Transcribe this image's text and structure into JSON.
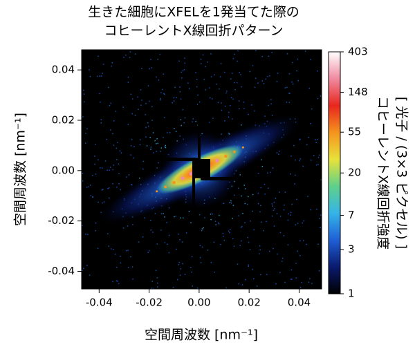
{
  "chart_data": {
    "type": "heatmap",
    "title": [
      "生きた細胞にXFELを1発当てた際の",
      "コヒーレントX線回折パターン"
    ],
    "x_label": "空間周波数 [nm⁻¹]",
    "y_label": "空間周波数 [nm⁻¹]",
    "colorbar_label": [
      "コヒーレントX線回折強度",
      "[ 光子 / (3×3 ピクセル) ]"
    ],
    "xlim": [
      -0.047,
      0.049
    ],
    "ylim": [
      -0.047,
      0.048
    ],
    "xticks": [
      -0.04,
      -0.02,
      {
        "value": 0,
        "label": "0.00"
      },
      0.02,
      0.04
    ],
    "yticks": [
      -0.04,
      -0.02,
      {
        "value": 0,
        "label": "0.00"
      },
      0.02,
      0.04
    ],
    "clim": [
      1,
      403
    ],
    "cticks": [
      1,
      3,
      7,
      20,
      55,
      148,
      403
    ],
    "color_scale": "log",
    "colormap": [
      "#000000",
      "#0a1a6e",
      "#1f5fd6",
      "#35b4e8",
      "#5fd08a",
      "#e8e23a",
      "#f5941e",
      "#e8261e",
      "#f08aa0",
      "#ffffff"
    ]
  }
}
